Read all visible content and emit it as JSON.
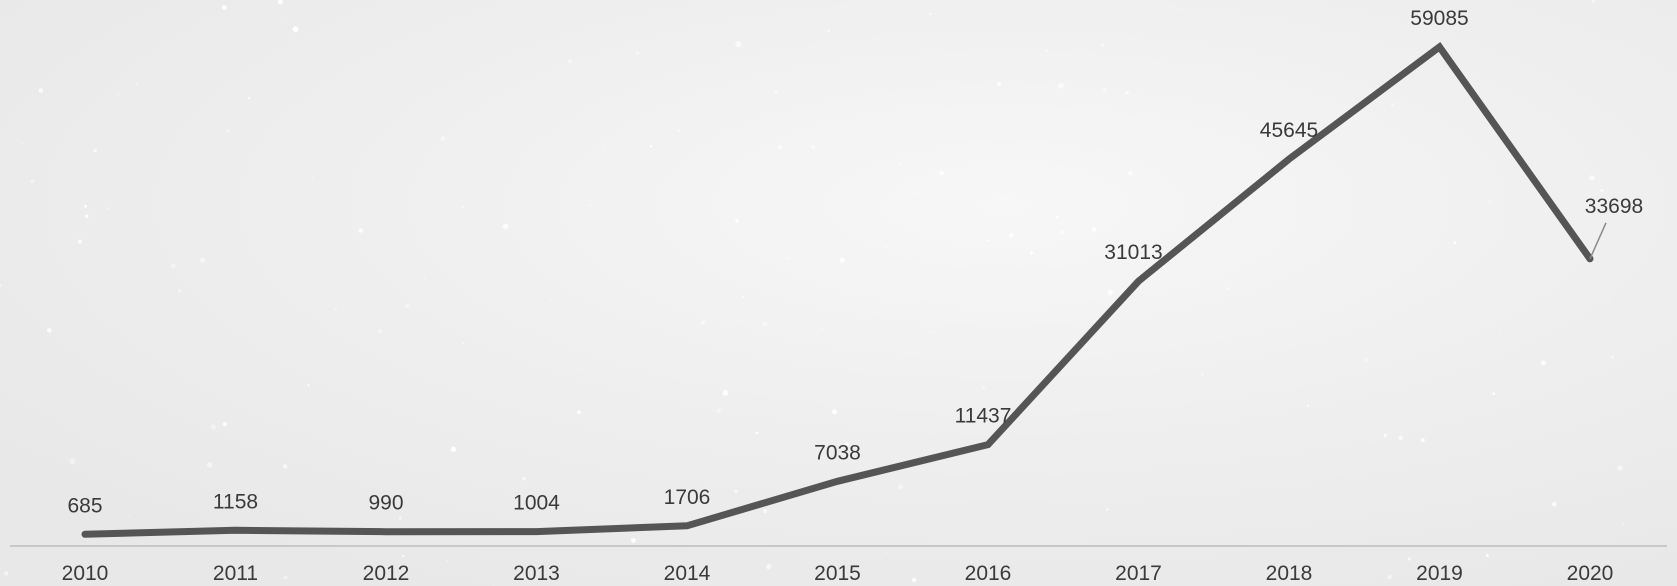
{
  "chart_data": {
    "type": "line",
    "categories": [
      "2010",
      "2011",
      "2012",
      "2013",
      "2014",
      "2015",
      "2016",
      "2017",
      "2018",
      "2019",
      "2020"
    ],
    "series": [
      {
        "values": [
          685,
          1158,
          990,
          1004,
          1706,
          7038,
          11437,
          31013,
          45645,
          59085,
          33698
        ],
        "color": "#555555"
      }
    ],
    "data_labels": [
      "685",
      "1158",
      "990",
      "1004",
      "1706",
      "7038",
      "11437",
      "31013",
      "45645",
      "59085",
      "33698"
    ],
    "title": "",
    "xlabel": "",
    "ylabel": "",
    "ylim": [
      0,
      63000
    ],
    "y_axis_visible": false,
    "grid": false,
    "legend": "none",
    "colors": {
      "line": "#555555",
      "axis": "#c8c8c8",
      "text": "#3a3a3a",
      "background": "#efefef"
    }
  }
}
